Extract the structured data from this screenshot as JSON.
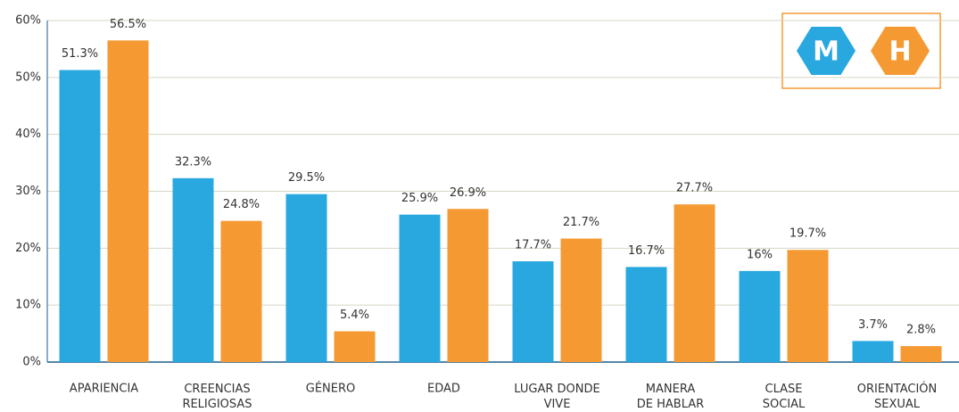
{
  "chart_data": {
    "type": "bar",
    "categories": [
      "APARIENCIA",
      "CREENCIAS\nRELIGIOSAS",
      "GÉNERO",
      "EDAD",
      "LUGAR DONDE\nVIVE",
      "MANERA\nDE HABLAR",
      "CLASE\nSOCIAL",
      "ORIENTACIÓN\nSEXUAL"
    ],
    "series": [
      {
        "name": "M",
        "color": "#29a8e0",
        "values": [
          51.3,
          32.3,
          29.5,
          25.9,
          17.7,
          16.7,
          16,
          3.7
        ],
        "value_labels": [
          "51.3%",
          "32.3%",
          "29.5%",
          "25.9%",
          "17.7%",
          "16.7%",
          "16%",
          "3.7%"
        ]
      },
      {
        "name": "H",
        "color": "#f59a33",
        "values": [
          56.5,
          24.8,
          5.4,
          26.9,
          21.7,
          27.7,
          19.7,
          2.8
        ],
        "value_labels": [
          "56.5%",
          "24.8%",
          "5.4%",
          "26.9%",
          "21.7%",
          "27.7%",
          "19.7%",
          "2.8%"
        ]
      }
    ],
    "ylim": [
      0,
      60
    ],
    "yticks": [
      {
        "value": 0,
        "label": "0%"
      },
      {
        "value": 10,
        "label": "10%"
      },
      {
        "value": 20,
        "label": "20%"
      },
      {
        "value": 30,
        "label": "30%"
      },
      {
        "value": 40,
        "label": "40%"
      },
      {
        "value": 50,
        "label": "50%"
      },
      {
        "value": 60,
        "label": "60%"
      }
    ],
    "grid": true,
    "legend": "upper right"
  }
}
